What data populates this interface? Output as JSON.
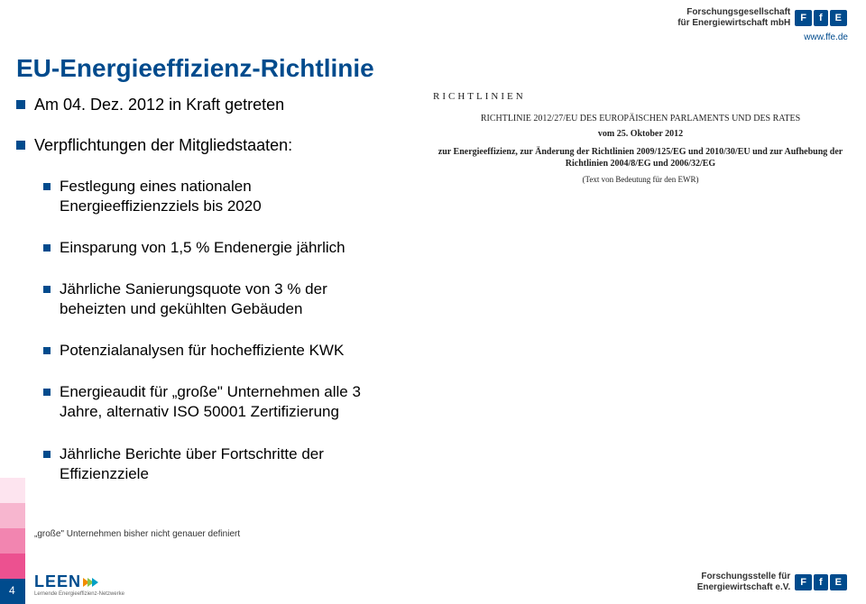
{
  "header": {
    "org_line1": "Forschungsgesellschaft",
    "org_line2": "für Energiewirtschaft mbH",
    "logo_text": [
      "F",
      "f",
      "E"
    ],
    "url": "www.ffe.de"
  },
  "title": "EU-Energieeffizienz-Richtlinie",
  "bullets": {
    "b1": "Am 04. Dez. 2012 in Kraft getreten",
    "b2": "Verpflichtungen der Mitgliedstaaten:",
    "sub": {
      "s1": "Festlegung eines nationalen Energieeffizienzziels bis 2020",
      "s2": "Einsparung von 1,5 % Endenergie jährlich",
      "s3": "Jährliche Sanierungsquote von 3 % der beheizten und gekühlten Gebäuden",
      "s4": "Potenzialanalysen für hocheffiziente KWK",
      "s5": "Energieaudit für „große\" Unternehmen alle 3 Jahre, alternativ ISO 50001 Zertifizierung",
      "s6": "Jährliche Berichte über Fortschritte der Effizienzziele"
    }
  },
  "doc": {
    "label": "RICHTLINIEN",
    "title": "RICHTLINIE 2012/27/EU DES EUROPÄISCHEN PARLAMENTS UND DES RATES",
    "date": "vom 25. Oktober 2012",
    "body": "zur Energieeffizienz, zur Änderung der Richtlinien 2009/125/EG und 2010/30/EU und zur Aufhebung der Richtlinien 2004/8/EG und 2006/32/EG",
    "note": "(Text von Bedeutung für den EWR)"
  },
  "footnote": "„große\" Unternehmen bisher nicht genauer definiert",
  "page_num": "4",
  "side_colors": [
    "#fde4ef",
    "#f7b6cf",
    "#f285b0",
    "#ec5190",
    "#004b8d"
  ],
  "footer": {
    "leen": "LEEN",
    "leen_sub": "Lernende Energieeffizienz-Netzwerke",
    "chevron_colors": [
      "#f28c00",
      "#8bc34a",
      "#00a0c6"
    ],
    "org_line1": "Forschungsstelle für",
    "org_line2": "Energiewirtschaft e.V.",
    "logo_text": [
      "F",
      "f",
      "E"
    ]
  },
  "colors": {
    "brand_blue": "#004b8d"
  }
}
